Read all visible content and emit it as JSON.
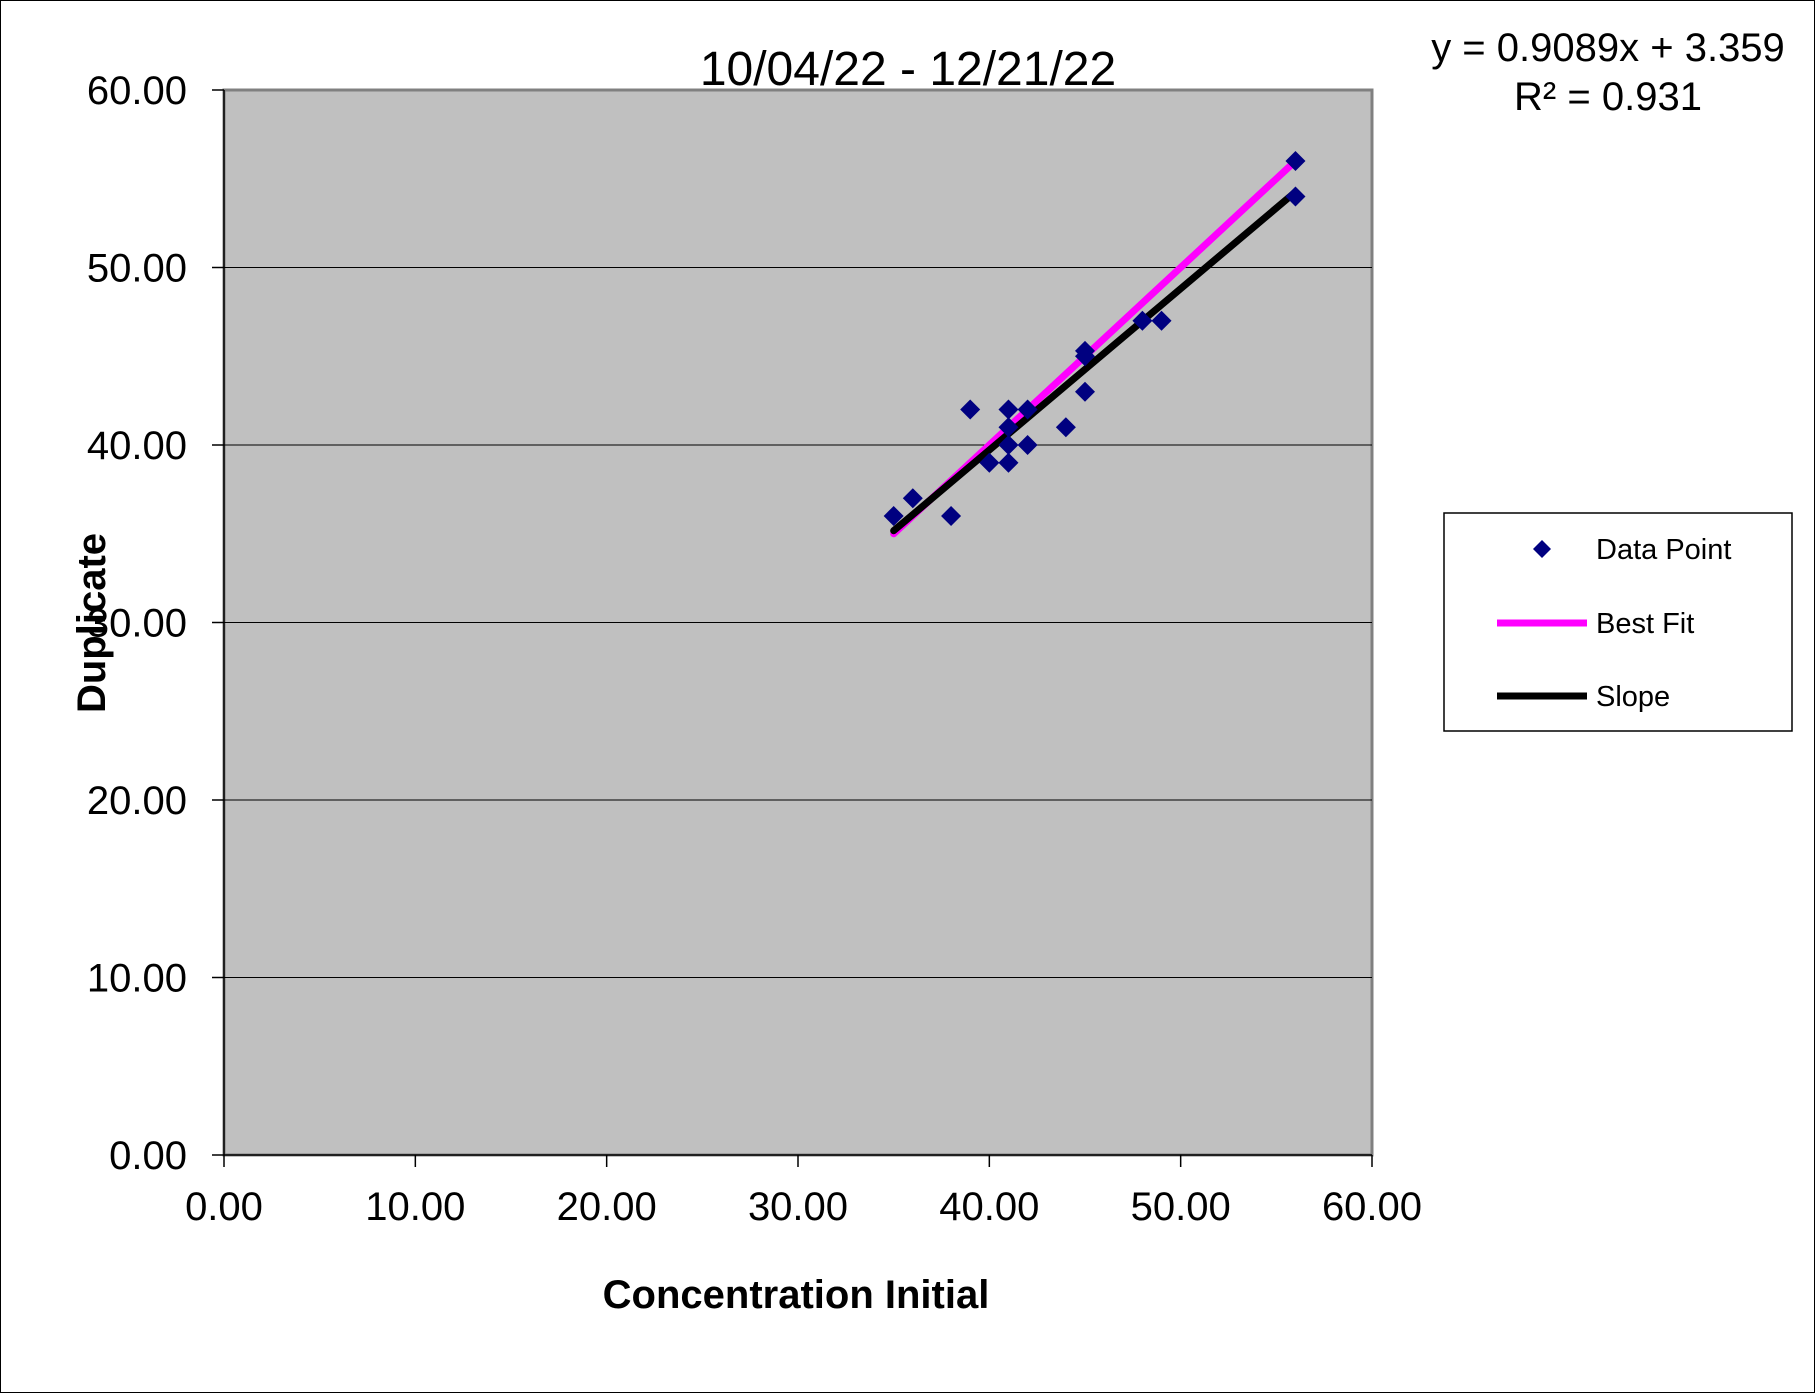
{
  "chart_data": {
    "type": "scatter",
    "title": "10/04/22 - 12/21/22",
    "xlabel": "Concentration Initial",
    "ylabel": "Duplicate",
    "xlim": [
      0,
      60
    ],
    "ylim": [
      0,
      60
    ],
    "x_ticks": [
      "0.00",
      "10.00",
      "20.00",
      "30.00",
      "40.00",
      "50.00",
      "60.00"
    ],
    "y_ticks": [
      "0.00",
      "10.00",
      "20.00",
      "30.00",
      "40.00",
      "50.00",
      "60.00"
    ],
    "grid": "horizontal major",
    "legend_position": "right",
    "annotation": {
      "equation": "y = 0.9089x + 3.359",
      "r_squared": "R² = 0.931"
    },
    "series": [
      {
        "name": "Data Point",
        "type": "scatter",
        "marker": "diamond",
        "color": "#000080",
        "points": [
          [
            35,
            36
          ],
          [
            36,
            37
          ],
          [
            38,
            36
          ],
          [
            39,
            42
          ],
          [
            40,
            39
          ],
          [
            41,
            42
          ],
          [
            41,
            41
          ],
          [
            41,
            40
          ],
          [
            41,
            39
          ],
          [
            42,
            42
          ],
          [
            42,
            40
          ],
          [
            44,
            41
          ],
          [
            45,
            45
          ],
          [
            45,
            45.3
          ],
          [
            45,
            43
          ],
          [
            48,
            47
          ],
          [
            49,
            47
          ],
          [
            56,
            56
          ],
          [
            56,
            54
          ]
        ]
      },
      {
        "name": "Best Fit",
        "type": "line",
        "color": "#ff00ff",
        "points": [
          [
            35,
            35
          ],
          [
            56,
            56
          ]
        ]
      },
      {
        "name": "Slope",
        "type": "line",
        "color": "#000000",
        "points": [
          [
            35,
            35.17
          ],
          [
            56,
            54.26
          ]
        ]
      }
    ],
    "colors": {
      "plot_background": "#c0c0c0",
      "gridline": "#000000"
    }
  }
}
